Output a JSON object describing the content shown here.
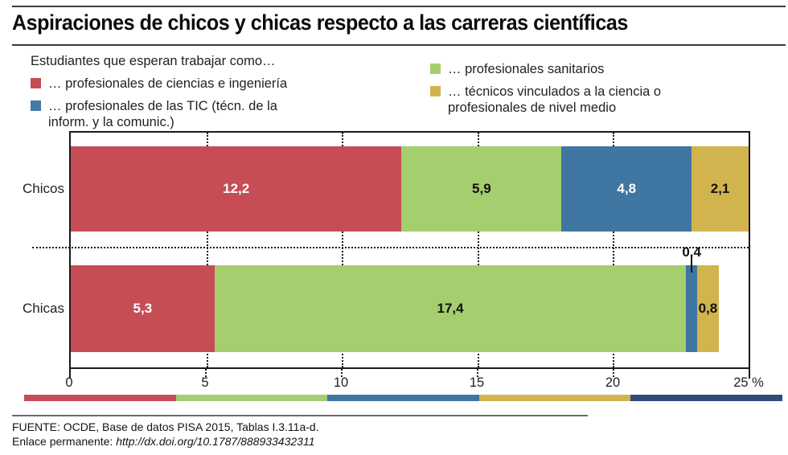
{
  "title": "Aspiraciones de chicos y chicas respecto a las carreras científicas",
  "legend": {
    "intro": "Estudiantes que esperan trabajar como…",
    "left_items": [
      {
        "label": "… profesionales de ciencias e ingeniería",
        "color": "#c64d56"
      },
      {
        "label": "… profesionales de las TIC (técn. de la inform. y la comunic.)",
        "color": "#4679a5"
      }
    ],
    "right_items": [
      {
        "label": "… profesionales sanitarios",
        "color": "#a5ce6e"
      },
      {
        "label": "… técnicos vinculados a la ciencia o profesionales de nivel medio",
        "color": "#d2b44e"
      }
    ]
  },
  "chart_data": {
    "type": "bar",
    "orientation": "horizontal",
    "stacked": true,
    "categories": [
      "Chicos",
      "Chicas"
    ],
    "series": [
      {
        "name": "… profesionales de ciencias e ingeniería",
        "color": "#c64d56",
        "label_color": "#ffffff",
        "values": [
          12.2,
          5.3
        ]
      },
      {
        "name": "… profesionales sanitarios",
        "color": "#a5ce6e",
        "label_color": "#111111",
        "values": [
          5.9,
          17.4
        ]
      },
      {
        "name": "… profesionales de las TIC (técn. de la inform. y la comunic.)",
        "color": "#4076a2",
        "label_color": "#ffffff",
        "values": [
          4.8,
          0.4
        ]
      },
      {
        "name": "… técnicos vinculados a la ciencia o profesionales de nivel medio",
        "color": "#d2b44e",
        "label_color": "#111111",
        "values": [
          2.1,
          0.8
        ]
      }
    ],
    "value_labels": [
      [
        "12,2",
        "5,9",
        "4,8",
        "2,1"
      ],
      [
        "5,3",
        "17,4",
        "0,4",
        "0,8"
      ]
    ],
    "xlim": [
      0,
      25
    ],
    "x_tick_values": [
      0,
      5,
      10,
      15,
      20,
      25
    ],
    "x_tick_labels": [
      "0",
      "5",
      "10",
      "15",
      "20",
      "25 %"
    ],
    "grid": "dotted vertical gridlines every 5 units; dotted horizontal separator between categories",
    "legend_position": "top"
  },
  "decor_strip": {
    "colors": [
      "#c64d56",
      "#a5ce6e",
      "#4076a2",
      "#d2b44e",
      "#2e4b7a"
    ]
  },
  "footer": {
    "source": "FUENTE: OCDE, Base de datos PISA 2015, Tablas I.3.11a-d.",
    "permalink_label": "Enlace permanente: ",
    "permalink_url": "http://dx.doi.org/10.1787/888933432311"
  }
}
